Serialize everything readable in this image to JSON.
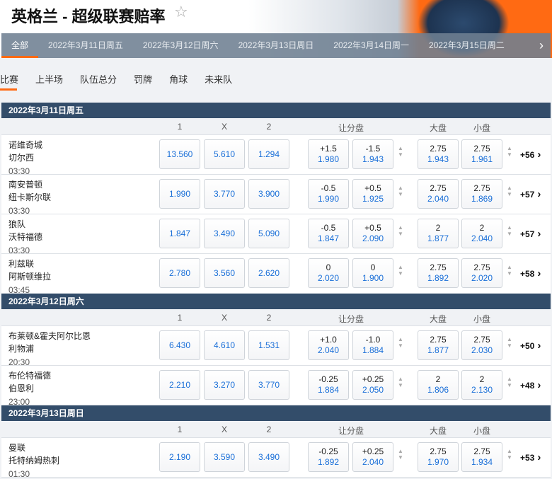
{
  "header": {
    "title": "英格兰 - 超级联赛赔率",
    "favorite_icon": "star-icon"
  },
  "date_tabs": [
    "全部",
    "2022年3月11日周五",
    "2022年3月12日周六",
    "2022年3月13日周日",
    "2022年3月14日周一",
    "2022年3月15日周二"
  ],
  "sub_tabs": [
    "比赛",
    "上半场",
    "队伍总分",
    "罚牌",
    "角球",
    "未来队"
  ],
  "columns": {
    "c1": "1",
    "cx": "X",
    "c2": "2",
    "handicap": "让分盘",
    "over": "大盘",
    "under": "小盘"
  },
  "colors": {
    "accent": "#ff6a13",
    "section": "#334d6a",
    "odds": "#1a6fd8"
  },
  "sections": [
    {
      "date": "2022年3月11日周五",
      "matches": [
        {
          "home": "诺维奇城",
          "away": "切尔西",
          "time": "03:30",
          "o1": "13.560",
          "ox": "5.610",
          "o2": "1.294",
          "h1l": "+1.5",
          "h1o": "1.980",
          "h2l": "-1.5",
          "h2o": "1.943",
          "ovl": "2.75",
          "ovo": "1.943",
          "unl": "2.75",
          "uno": "1.961",
          "more": "+56"
        },
        {
          "home": "南安普顿",
          "away": "纽卡斯尔联",
          "time": "03:30",
          "o1": "1.990",
          "ox": "3.770",
          "o2": "3.900",
          "h1l": "-0.5",
          "h1o": "1.990",
          "h2l": "+0.5",
          "h2o": "1.925",
          "ovl": "2.75",
          "ovo": "2.040",
          "unl": "2.75",
          "uno": "1.869",
          "more": "+57"
        },
        {
          "home": "狼队",
          "away": "沃特福德",
          "time": "03:30",
          "o1": "1.847",
          "ox": "3.490",
          "o2": "5.090",
          "h1l": "-0.5",
          "h1o": "1.847",
          "h2l": "+0.5",
          "h2o": "2.090",
          "ovl": "2",
          "ovo": "1.877",
          "unl": "2",
          "uno": "2.040",
          "more": "+57"
        },
        {
          "home": "利兹联",
          "away": "阿斯顿维拉",
          "time": "03:45",
          "o1": "2.780",
          "ox": "3.560",
          "o2": "2.620",
          "h1l": "0",
          "h1o": "2.020",
          "h2l": "0",
          "h2o": "1.900",
          "ovl": "2.75",
          "ovo": "1.892",
          "unl": "2.75",
          "uno": "2.020",
          "more": "+58"
        }
      ]
    },
    {
      "date": "2022年3月12日周六",
      "matches": [
        {
          "home": "布莱顿&霍夫阿尔比恩",
          "away": "利物浦",
          "time": "20:30",
          "o1": "6.430",
          "ox": "4.610",
          "o2": "1.531",
          "h1l": "+1.0",
          "h1o": "2.040",
          "h2l": "-1.0",
          "h2o": "1.884",
          "ovl": "2.75",
          "ovo": "1.877",
          "unl": "2.75",
          "uno": "2.030",
          "more": "+50"
        },
        {
          "home": "布伦特福德",
          "away": "伯恩利",
          "time": "23:00",
          "o1": "2.210",
          "ox": "3.270",
          "o2": "3.770",
          "h1l": "-0.25",
          "h1o": "1.884",
          "h2l": "+0.25",
          "h2o": "2.050",
          "ovl": "2",
          "ovo": "1.806",
          "unl": "2",
          "uno": "2.130",
          "more": "+48"
        }
      ]
    },
    {
      "date": "2022年3月13日周日",
      "matches": [
        {
          "home": "曼联",
          "away": "托特纳姆热刺",
          "time": "01:30",
          "o1": "2.190",
          "ox": "3.590",
          "o2": "3.490",
          "h1l": "-0.25",
          "h1o": "1.892",
          "h2l": "+0.25",
          "h2o": "2.040",
          "ovl": "2.75",
          "ovo": "1.970",
          "unl": "2.75",
          "uno": "1.934",
          "more": "+53"
        }
      ]
    }
  ]
}
